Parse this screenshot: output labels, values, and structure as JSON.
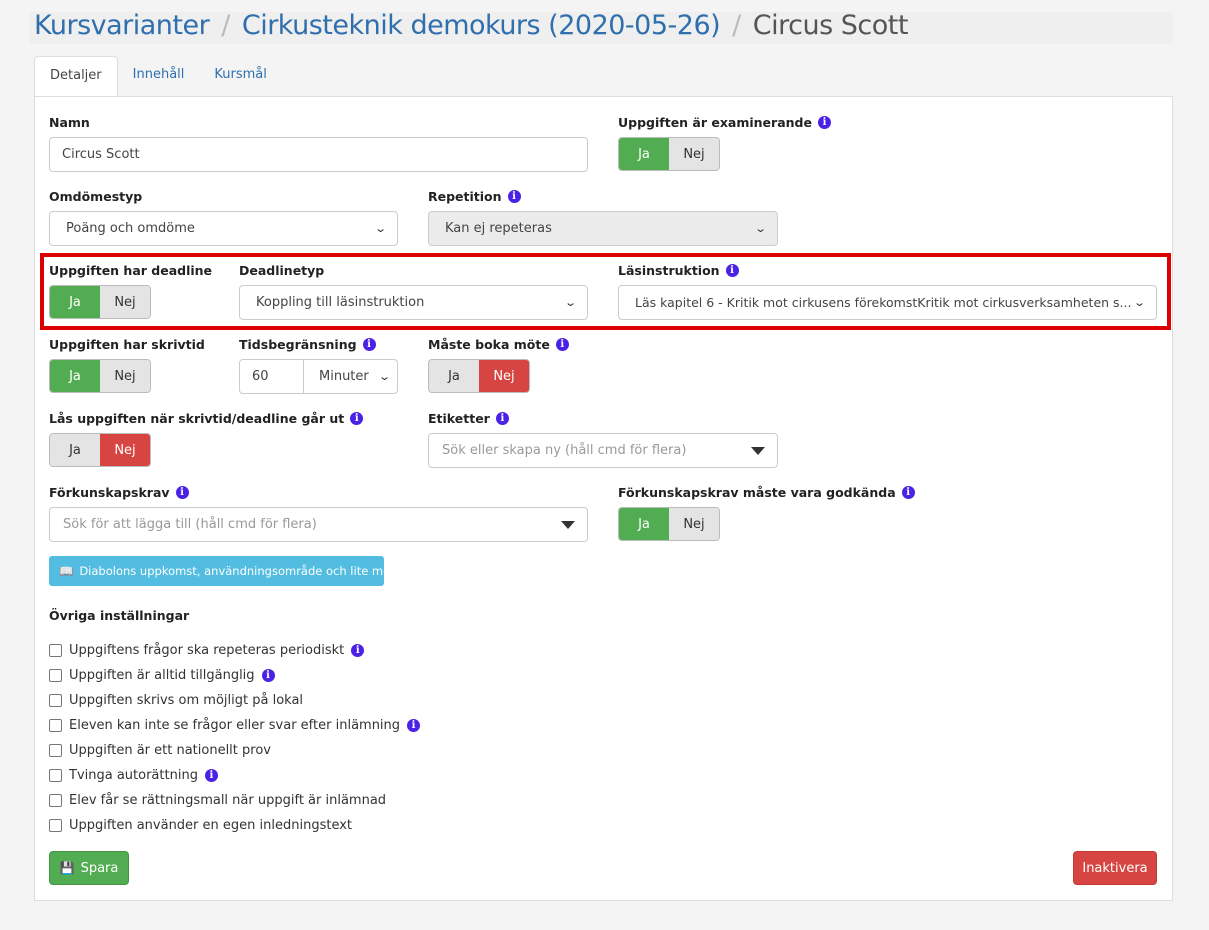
{
  "breadcrumb": {
    "items": [
      "Kursvarianter",
      "Cirkusteknik demokurs (2020-05-26)"
    ],
    "current": "Circus Scott",
    "separator": "/"
  },
  "tabs": [
    "Detaljer",
    "Innehåll",
    "Kursmål"
  ],
  "form": {
    "namn": {
      "label": "Namn",
      "value": "Circus Scott"
    },
    "examinerande": {
      "label": "Uppgiften är examinerande",
      "selected": "Ja"
    },
    "omdomestyp": {
      "label": "Omdömestyp",
      "value": "Poäng och omdöme"
    },
    "repetition": {
      "label": "Repetition",
      "value": "Kan ej repeteras"
    },
    "deadline": {
      "label": "Uppgiften har deadline",
      "selected": "Ja"
    },
    "deadlinetyp": {
      "label": "Deadlinetyp",
      "value": "Koppling till läsinstruktion"
    },
    "lasinstruktion": {
      "label": "Läsinstruktion",
      "value": "Läs kapitel 6 - Kritik mot cirkusens förekomstKritik mot cirkusverksamheten s..."
    },
    "skrivtid": {
      "label": "Uppgiften har skrivtid",
      "selected": "Ja"
    },
    "tidsbegransning": {
      "label": "Tidsbegränsning",
      "value": "60",
      "unit": "Minuter"
    },
    "boka_mote": {
      "label": "Måste boka möte",
      "selected": "Nej"
    },
    "las": {
      "label": "Lås uppgiften när skrivtid/deadline går ut",
      "selected": "Nej"
    },
    "etiketter": {
      "label": "Etiketter",
      "placeholder": "Sök eller skapa ny (håll cmd för flera)"
    },
    "forkunskapskrav": {
      "label": "Förkunskapskrav",
      "placeholder": "Sök för att lägga till (håll cmd för flera)",
      "chips": [
        "Diabolons uppkomst, användningsområde och lite mer"
      ]
    },
    "forkunskap_godkanda": {
      "label": "Förkunskapskrav måste vara godkända",
      "selected": "Ja"
    },
    "ja": "Ja",
    "nej": "Nej",
    "ovriga": {
      "label": "Övriga inställningar",
      "items": [
        "Uppgiftens frågor ska repeteras periodiskt",
        "Uppgiften är alltid tillgänglig",
        "Uppgiften skrivs om möjligt på lokal",
        "Eleven kan inte se frågor eller svar efter inlämning",
        "Uppgiften är ett nationellt prov",
        "Tvinga autorättning",
        "Elev får se rättningsmall när uppgift är inlämnad",
        "Uppgiften använder en egen inledningstext"
      ]
    }
  },
  "buttons": {
    "save": "Spara",
    "deactivate": "Inaktivera"
  },
  "colors": {
    "success": "#52ad52",
    "danger": "#d64541",
    "info": "#52bde0",
    "link": "#2f6fad",
    "highlight": "#dd0000"
  }
}
